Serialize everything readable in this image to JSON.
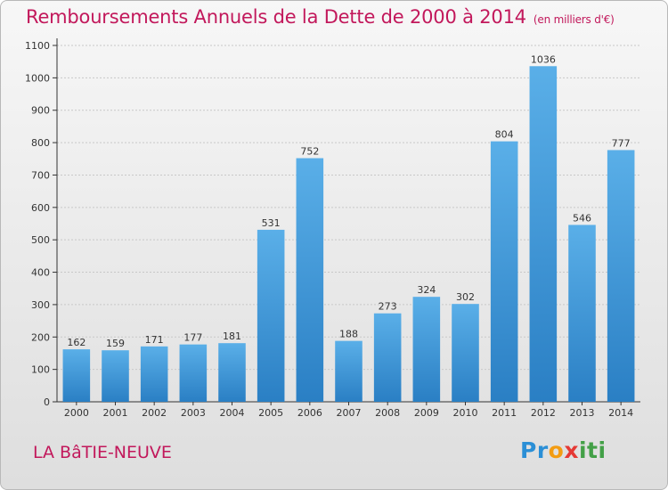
{
  "title": "Remboursements Annuels de la Dette de 2000 à 2014",
  "unit_note": "(en milliers d'€)",
  "town": "LA BâTIE-NEUVE",
  "logo": {
    "text": "Proxiti",
    "parts": [
      "Pr",
      "o",
      "x",
      "iti"
    ]
  },
  "colors": {
    "title": "#c2185b",
    "bar_top": "#5aafe8",
    "bar_bottom": "#2a7fc4",
    "grid": "#c8c8c8",
    "axis": "#333333"
  },
  "chart_data": {
    "type": "bar",
    "title": "Remboursements Annuels de la Dette de 2000 à 2014",
    "xlabel": "",
    "ylabel": "",
    "categories": [
      "2000",
      "2001",
      "2002",
      "2003",
      "2004",
      "2005",
      "2006",
      "2007",
      "2008",
      "2009",
      "2010",
      "2011",
      "2012",
      "2013",
      "2014"
    ],
    "values": [
      162,
      159,
      171,
      177,
      181,
      531,
      752,
      188,
      273,
      324,
      302,
      804,
      1036,
      546,
      777
    ],
    "ylim": [
      0,
      1100
    ],
    "yticks": [
      0,
      100,
      200,
      300,
      400,
      500,
      600,
      700,
      800,
      900,
      1000,
      1100
    ],
    "grid": true
  }
}
